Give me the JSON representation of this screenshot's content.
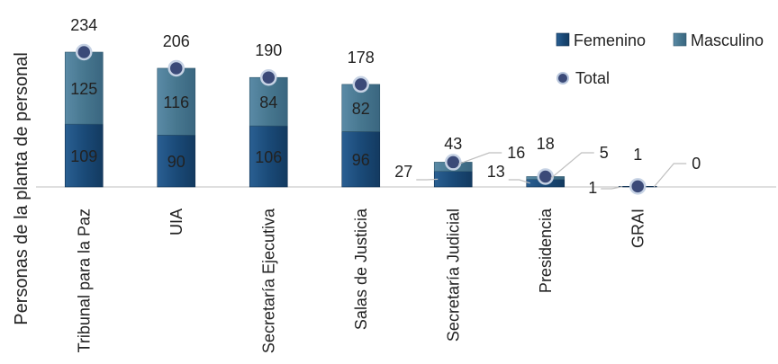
{
  "chart_data": {
    "type": "bar",
    "stacked": true,
    "ylabel": "Personas de la planta de personal",
    "categories": [
      "Tribunal para la Paz",
      "UIA",
      "Secretaría Ejecutiva",
      "Salas de Justicia",
      "Secretaría Judicial",
      "Presidencia",
      "GRAI"
    ],
    "series": [
      {
        "name": "Femenino",
        "values": [
          109,
          90,
          106,
          96,
          27,
          13,
          1
        ],
        "color": "#1f4e79"
      },
      {
        "name": "Masculino",
        "values": [
          125,
          116,
          84,
          82,
          16,
          5,
          0
        ],
        "color": "#4a7a96"
      }
    ],
    "total": {
      "name": "Total",
      "values": [
        234,
        206,
        190,
        178,
        43,
        18,
        1
      ],
      "color": "#3b4a78"
    },
    "legend_position": "top-right",
    "grid": false,
    "ylim": [
      0,
      250
    ]
  }
}
